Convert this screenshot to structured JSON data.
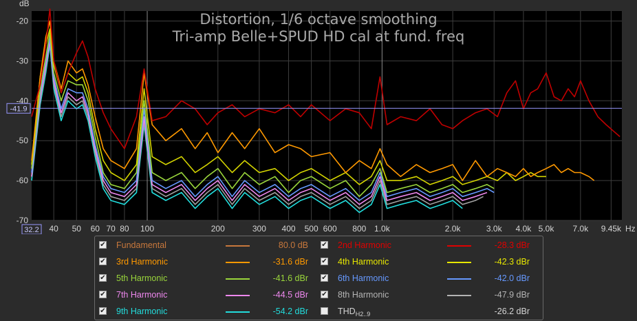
{
  "chart_data": {
    "type": "line",
    "title": "Distortion, 1/6 octave smoothing",
    "subtitle": "Tri-amp Belle+SPUD HD cal at fund. freq",
    "ylabel": "dB",
    "xlabel": "Hz",
    "x_scale": "log",
    "xlim": [
      32.2,
      10500
    ],
    "ylim": [
      -70,
      -17.5
    ],
    "y_ticks": [
      "-20",
      "-30",
      "-40",
      "-50",
      "-60",
      "-70"
    ],
    "y_tick_values": [
      -20,
      -30,
      -40,
      -50,
      -60,
      -70
    ],
    "x_ticks": [
      "40",
      "50",
      "60",
      "70",
      "80",
      "100",
      "200",
      "300",
      "400",
      "500",
      "600",
      "800",
      "1.0k",
      "2.0k",
      "3.0k",
      "4.0k",
      "5.0k",
      "7.0k",
      "9.45k"
    ],
    "x_tick_values": [
      40,
      50,
      60,
      70,
      80,
      100,
      200,
      300,
      400,
      500,
      600,
      800,
      1000,
      2000,
      3000,
      4000,
      5000,
      7000,
      9450
    ],
    "x_start_label": "32.2",
    "cursor_y_label": "-41.9",
    "cursor_y": -41.9,
    "grid": true,
    "series": [
      {
        "name": "2nd Harmonic",
        "color": "#c00000",
        "x": [
          32.2,
          35,
          37,
          38.5,
          40,
          43,
          46,
          50,
          53,
          56,
          60,
          65,
          70,
          80,
          90,
          97,
          105,
          120,
          140,
          160,
          180,
          200,
          230,
          260,
          300,
          350,
          400,
          450,
          500,
          600,
          700,
          800,
          900,
          980,
          1050,
          1200,
          1400,
          1600,
          1800,
          2000,
          2200,
          2500,
          2800,
          3100,
          3400,
          3700,
          4000,
          4300,
          4600,
          5000,
          5400,
          5800,
          6200,
          6600,
          7000,
          7600,
          8300,
          9000,
          10300
        ],
        "y": [
          -44,
          -36,
          -26,
          -17,
          -30,
          -38,
          -33,
          -28,
          -25,
          -29,
          -37,
          -43,
          -47,
          -52,
          -44,
          -32,
          -45,
          -44,
          -40,
          -42,
          -46,
          -43,
          -41,
          -44,
          -42,
          -43,
          -41,
          -44,
          -41,
          -45,
          -42,
          -43,
          -47,
          -34,
          -46,
          -44,
          -45,
          -42,
          -46,
          -47,
          -45,
          -43,
          -42,
          -44,
          -38,
          -35,
          -42,
          -38,
          -37,
          -33,
          -39,
          -40,
          -37,
          -39,
          -35,
          -40,
          -44,
          -46,
          -49
        ]
      },
      {
        "name": "3rd Harmonic",
        "color": "#ff9900",
        "x": [
          32.2,
          35,
          37,
          38.5,
          40,
          43,
          46,
          50,
          53,
          56,
          60,
          65,
          70,
          80,
          90,
          97,
          105,
          120,
          140,
          160,
          180,
          200,
          230,
          260,
          300,
          350,
          400,
          450,
          500,
          600,
          700,
          800,
          900,
          980,
          1050,
          1200,
          1400,
          1600,
          1800,
          2000,
          2200,
          2500,
          2800,
          3100,
          3400,
          3700,
          4000,
          4300,
          4600,
          5000,
          5400,
          5800,
          6200,
          6600,
          7000,
          7600,
          8000
        ],
        "y": [
          -55,
          -34,
          -24,
          -20,
          -30,
          -37,
          -30,
          -33,
          -32,
          -36,
          -44,
          -52,
          -55,
          -57,
          -52,
          -33,
          -46,
          -50,
          -47,
          -52,
          -48,
          -53,
          -48,
          -52,
          -47,
          -53,
          -51,
          -52,
          -54,
          -53,
          -58,
          -55,
          -57,
          -52,
          -56,
          -59,
          -56,
          -58,
          -57,
          -56,
          -60,
          -55,
          -59,
          -57,
          -58,
          -59,
          -57,
          -59,
          -58,
          -57,
          -56,
          -58,
          -57,
          -58,
          -58,
          -59,
          -60
        ]
      },
      {
        "name": "4th Harmonic",
        "color": "#d4d400",
        "x": [
          32.2,
          35,
          37,
          38.5,
          40,
          43,
          46,
          50,
          53,
          56,
          60,
          65,
          70,
          80,
          90,
          97,
          105,
          120,
          140,
          160,
          180,
          200,
          230,
          260,
          300,
          350,
          400,
          450,
          500,
          600,
          700,
          800,
          900,
          980,
          1050,
          1200,
          1400,
          1600,
          1800,
          2000,
          2200,
          2500,
          2800,
          3100,
          3400,
          3700,
          4000,
          4300,
          4600,
          5000
        ],
        "y": [
          -56,
          -34,
          -26,
          -22,
          -31,
          -38,
          -33,
          -35,
          -34,
          -38,
          -47,
          -55,
          -58,
          -60,
          -56,
          -37,
          -54,
          -56,
          -54,
          -58,
          -56,
          -54,
          -58,
          -55,
          -58,
          -57,
          -60,
          -58,
          -57,
          -60,
          -58,
          -61,
          -59,
          -55,
          -60,
          -60,
          -59,
          -61,
          -60,
          -59,
          -61,
          -60,
          -59,
          -60,
          -58,
          -60,
          -59,
          -58,
          -59,
          -59
        ]
      },
      {
        "name": "5th Harmonic",
        "color": "#9ad63b",
        "x": [
          32.2,
          35,
          37,
          38.5,
          40,
          43,
          46,
          50,
          53,
          56,
          60,
          65,
          70,
          80,
          90,
          97,
          105,
          120,
          140,
          160,
          180,
          200,
          230,
          260,
          300,
          350,
          400,
          450,
          500,
          600,
          700,
          800,
          900,
          980,
          1050,
          1200,
          1400,
          1600,
          1800,
          2000,
          2200,
          2500,
          2800,
          3000
        ],
        "y": [
          -57,
          -37,
          -29,
          -23,
          -33,
          -40,
          -35,
          -36,
          -36,
          -40,
          -49,
          -58,
          -61,
          -62,
          -58,
          -40,
          -58,
          -60,
          -58,
          -62,
          -59,
          -57,
          -62,
          -58,
          -61,
          -59,
          -63,
          -60,
          -59,
          -62,
          -60,
          -64,
          -61,
          -57,
          -63,
          -62,
          -61,
          -63,
          -62,
          -61,
          -63,
          -62,
          -61,
          -62
        ]
      },
      {
        "name": "6th Harmonic",
        "color": "#6699ff",
        "x": [
          32.2,
          35,
          37,
          38.5,
          40,
          43,
          46,
          50,
          53,
          56,
          60,
          65,
          70,
          80,
          90,
          97,
          105,
          120,
          140,
          160,
          180,
          200,
          230,
          260,
          300,
          350,
          400,
          450,
          500,
          600,
          700,
          800,
          900,
          980,
          1050,
          1200,
          1400,
          1600,
          1800,
          2000,
          2200,
          2500,
          2800,
          3000
        ],
        "y": [
          -58,
          -38,
          -30,
          -24,
          -34,
          -42,
          -37,
          -38,
          -38,
          -42,
          -51,
          -59,
          -62,
          -63,
          -60,
          -42,
          -60,
          -62,
          -60,
          -64,
          -61,
          -59,
          -64,
          -60,
          -63,
          -61,
          -64,
          -62,
          -61,
          -64,
          -62,
          -65,
          -63,
          -58,
          -64,
          -63,
          -62,
          -64,
          -63,
          -62,
          -64,
          -63,
          -62,
          -63
        ]
      },
      {
        "name": "7th Harmonic",
        "color": "#ee88ee",
        "x": [
          32.2,
          35,
          37,
          38.5,
          40,
          43,
          46,
          50,
          53,
          56,
          60,
          65,
          70,
          80,
          90,
          97,
          105,
          120,
          140,
          160,
          180,
          200,
          230,
          260,
          300,
          350,
          400,
          450,
          500,
          600,
          700,
          800,
          900,
          980,
          1050,
          1200,
          1400,
          1600,
          1800,
          2000,
          2200,
          2500,
          2800
        ],
        "y": [
          -59,
          -39,
          -31,
          -25,
          -35,
          -43,
          -38,
          -40,
          -39,
          -43,
          -52,
          -60,
          -63,
          -64,
          -61,
          -44,
          -61,
          -63,
          -61,
          -65,
          -62,
          -60,
          -65,
          -61,
          -64,
          -62,
          -65,
          -63,
          -62,
          -65,
          -63,
          -66,
          -64,
          -59,
          -65,
          -64,
          -63,
          -65,
          -64,
          -63,
          -65,
          -64,
          -63
        ]
      },
      {
        "name": "8th Harmonic",
        "color": "#a0a0a0",
        "x": [
          32.2,
          35,
          37,
          38.5,
          40,
          43,
          46,
          50,
          53,
          56,
          60,
          65,
          70,
          80,
          90,
          97,
          105,
          120,
          140,
          160,
          180,
          200,
          230,
          260,
          300,
          350,
          400,
          450,
          500,
          600,
          700,
          800,
          900,
          980,
          1050,
          1200,
          1400,
          1600,
          1800,
          2000,
          2200,
          2500,
          2700
        ],
        "y": [
          -59,
          -40,
          -32,
          -25,
          -36,
          -44,
          -39,
          -41,
          -40,
          -44,
          -53,
          -61,
          -64,
          -65,
          -62,
          -45,
          -62,
          -64,
          -62,
          -66,
          -63,
          -61,
          -66,
          -62,
          -65,
          -63,
          -66,
          -64,
          -63,
          -66,
          -64,
          -67,
          -65,
          -60,
          -66,
          -65,
          -64,
          -66,
          -65,
          -64,
          -66,
          -65,
          -64
        ]
      },
      {
        "name": "9th Harmonic",
        "color": "#22dddd",
        "x": [
          32.2,
          35,
          37,
          38.5,
          40,
          43,
          46,
          50,
          53,
          56,
          60,
          65,
          70,
          80,
          90,
          97,
          105,
          120,
          140,
          160,
          180,
          200,
          230,
          260,
          300,
          350,
          400,
          450,
          500,
          600,
          700,
          800,
          900,
          980,
          1050,
          1200,
          1400,
          1600,
          1800,
          2000,
          2200
        ],
        "y": [
          -60,
          -41,
          -33,
          -26,
          -37,
          -45,
          -40,
          -42,
          -41,
          -45,
          -54,
          -62,
          -65,
          -66,
          -63,
          -46,
          -63,
          -65,
          -63,
          -67,
          -64,
          -62,
          -67,
          -63,
          -66,
          -64,
          -67,
          -65,
          -64,
          -67,
          -65,
          -68,
          -66,
          -61,
          -67,
          -66,
          -65,
          -67,
          -66,
          -65,
          -67
        ]
      }
    ]
  },
  "legend": {
    "items": [
      {
        "name": "Fundamental",
        "value": "80.0 dB",
        "color": "#c8783c",
        "checked": true
      },
      {
        "name": "2nd Harmonic",
        "value": "-28.3 dBr",
        "color": "#e00000",
        "checked": true
      },
      {
        "name": "3rd Harmonic",
        "value": "-31.6 dBr",
        "color": "#ff9900",
        "checked": true
      },
      {
        "name": "4th Harmonic",
        "value": "-42.3 dBr",
        "color": "#e8e800",
        "checked": true
      },
      {
        "name": "5th Harmonic",
        "value": "-41.6 dBr",
        "color": "#9ad63b",
        "checked": true
      },
      {
        "name": "6th Harmonic",
        "value": "-42.0 dBr",
        "color": "#6699ff",
        "checked": true
      },
      {
        "name": "7th Harmonic",
        "value": "-44.5 dBr",
        "color": "#ee88ee",
        "checked": true
      },
      {
        "name": "8th Harmonic",
        "value": "-47.9 dBr",
        "color": "#b4b4b4",
        "checked": true
      },
      {
        "name": "9th Harmonic",
        "value": "-54.2 dBr",
        "color": "#22dddd",
        "checked": true
      },
      {
        "name": "THD",
        "name_sub": "H2..9",
        "value": "-26.2 dBr",
        "color": "#d4d4d4",
        "checked": false
      }
    ]
  }
}
